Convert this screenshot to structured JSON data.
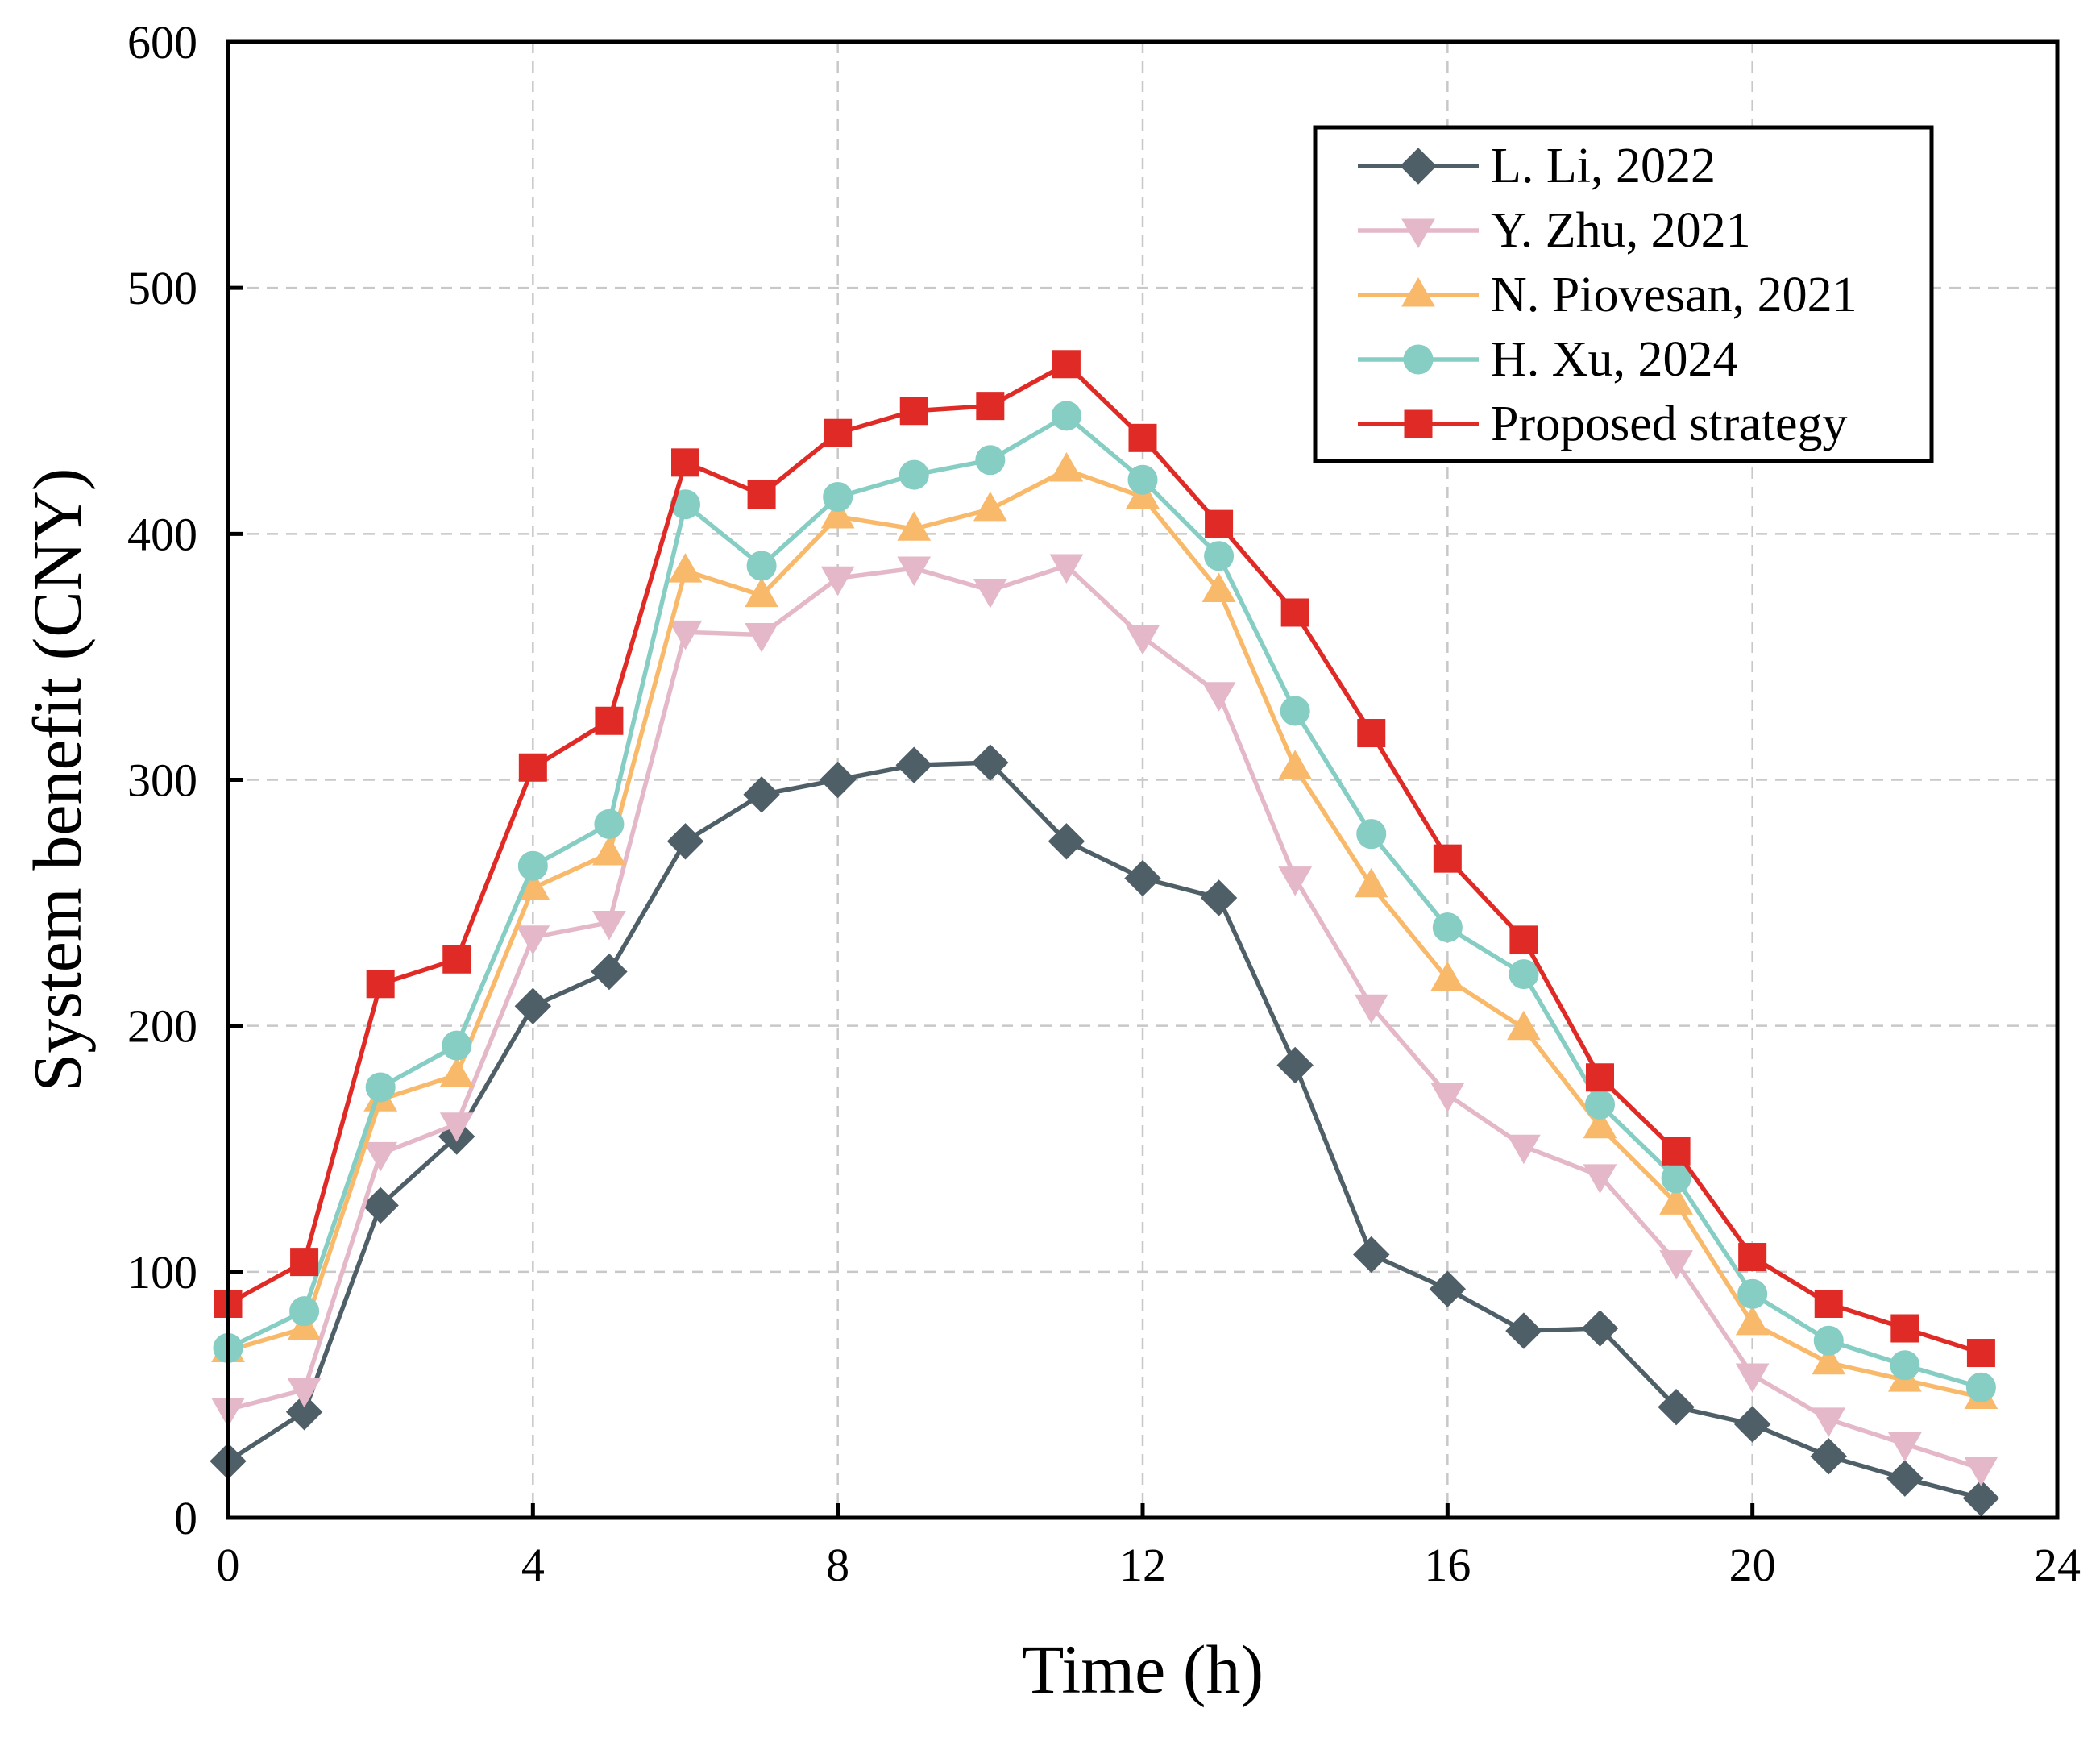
{
  "chart_data": {
    "type": "line",
    "title": "",
    "xlabel": "Time (h)",
    "ylabel": "System benefit (CNY)",
    "xlim": [
      0,
      24
    ],
    "ylim": [
      0,
      600
    ],
    "xticks": [
      0,
      4,
      8,
      12,
      16,
      20,
      24
    ],
    "yticks": [
      0,
      100,
      200,
      300,
      400,
      500,
      600
    ],
    "grid": true,
    "legend_position": "top-right",
    "x": [
      0,
      1,
      2,
      3,
      4,
      5,
      6,
      7,
      8,
      9,
      10,
      11,
      12,
      13,
      14,
      15,
      16,
      17,
      18,
      19,
      20,
      21,
      22,
      23
    ],
    "series": [
      {
        "name": "L. Li, 2022",
        "color": "#4f5f67",
        "marker": "diamond",
        "values": [
          23,
          43,
          127,
          155,
          208,
          222,
          275,
          294,
          300,
          306,
          307,
          275,
          260,
          252,
          184,
          107,
          93,
          76,
          77,
          45,
          38,
          25,
          16,
          8
        ]
      },
      {
        "name": "Y. Zhu, 2021",
        "color": "#e4b8c8",
        "marker": "triangle-down",
        "values": [
          44,
          52,
          148,
          160,
          236,
          242,
          360,
          359,
          382,
          386,
          377,
          387,
          358,
          335,
          260,
          208,
          172,
          151,
          139,
          104,
          58,
          40,
          30,
          20
        ]
      },
      {
        "name": "N. Piovesan, 2021",
        "color": "#f9b96b",
        "marker": "triangle-up",
        "values": [
          68,
          77,
          170,
          180,
          256,
          270,
          385,
          375,
          407,
          402,
          410,
          426,
          415,
          377,
          305,
          257,
          219,
          199,
          159,
          128,
          79,
          63,
          56,
          49
        ]
      },
      {
        "name": "H. Xu, 2024",
        "color": "#86cdc4",
        "marker": "circle",
        "values": [
          69,
          84,
          175,
          192,
          265,
          282,
          412,
          387,
          415,
          424,
          430,
          448,
          422,
          391,
          328,
          278,
          240,
          221,
          168,
          138,
          91,
          72,
          62,
          53
        ]
      },
      {
        "name": "Proposed strategy",
        "color": "#e02a26",
        "marker": "square",
        "values": [
          87,
          104,
          217,
          227,
          305,
          324,
          429,
          416,
          441,
          450,
          452,
          469,
          439,
          404,
          368,
          319,
          268,
          235,
          179,
          149,
          106,
          87,
          77,
          67
        ]
      }
    ]
  }
}
